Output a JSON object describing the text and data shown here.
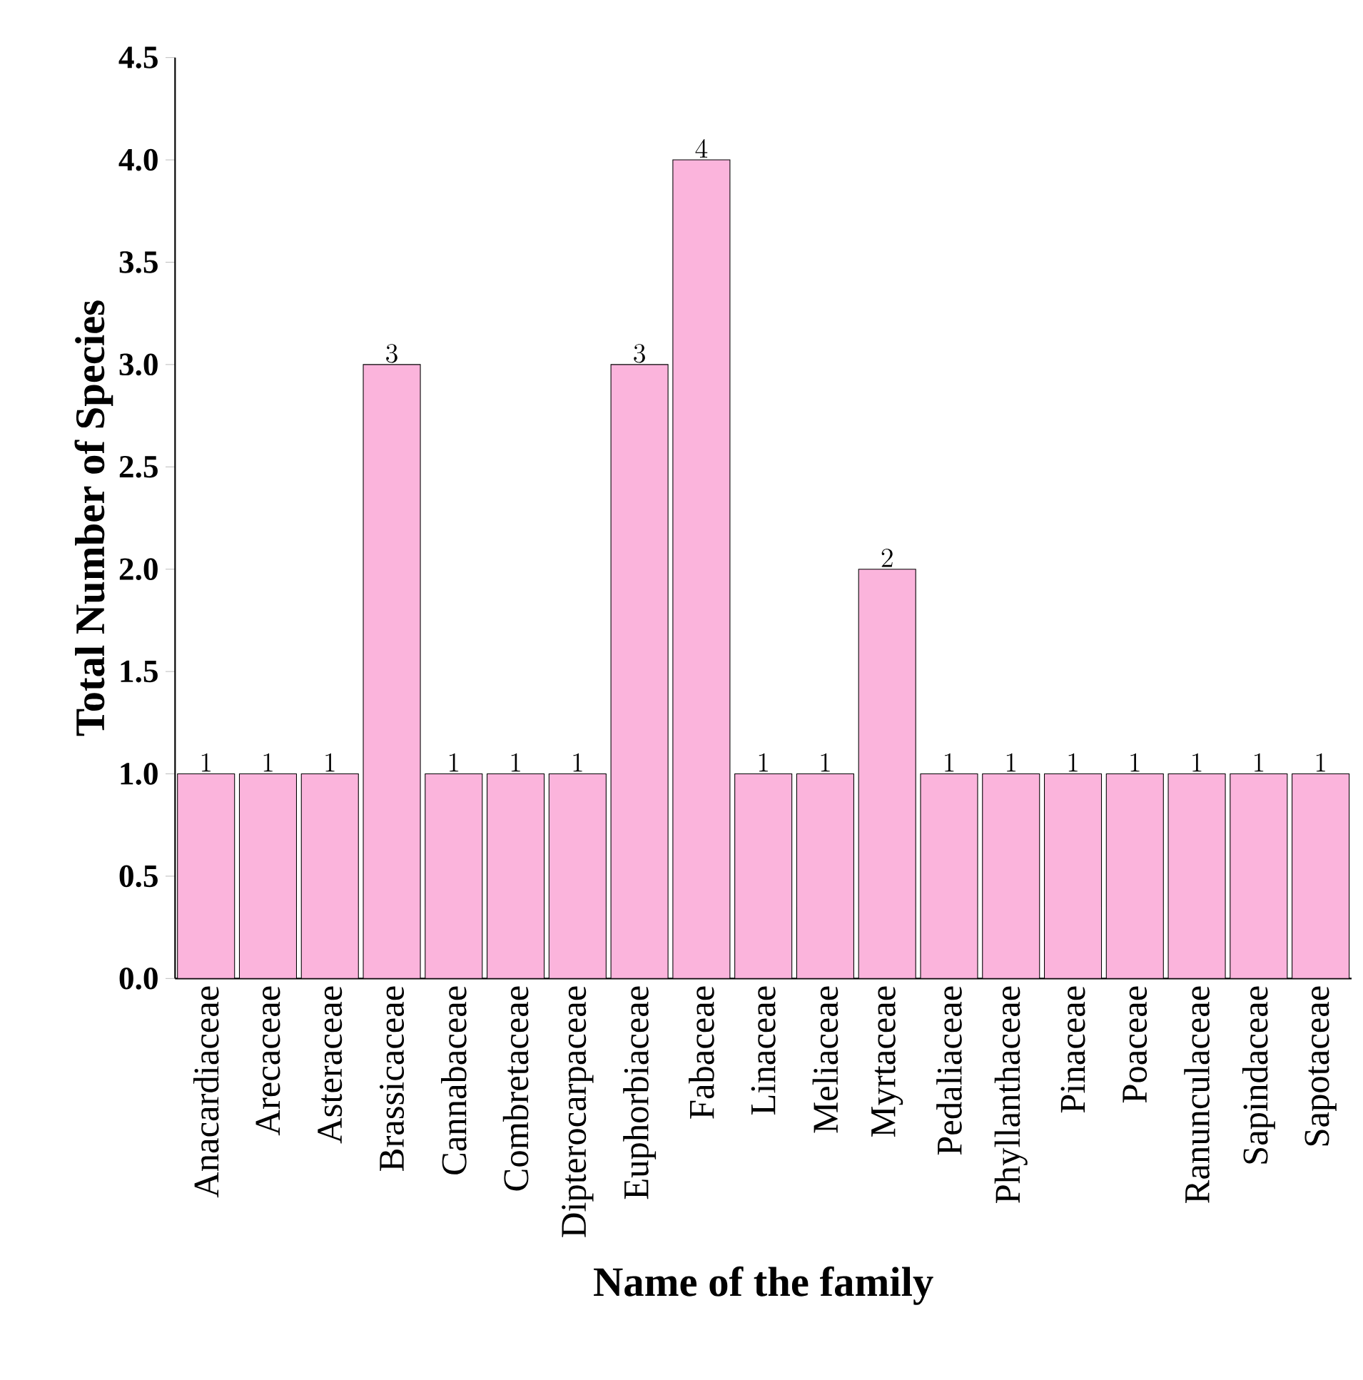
{
  "chart_data": {
    "type": "bar",
    "xlabel": "Name of the family",
    "ylabel": "Total Number of Species",
    "categories": [
      "Anacardiaceae",
      "Arecaceae",
      "Asteraceae",
      "Brassicaceae",
      "Cannabaceae",
      "Combretaceae",
      "Dipterocarpaceae",
      "Euphorbiaceae",
      "Fabaceae",
      "Linaceae",
      "Meliaceae",
      "Myrtaceae",
      "Pedaliaceae",
      "Phyllanthaceae",
      "Pinaceae",
      "Poaceae",
      "Ranunculaceae",
      "Sapindaceae",
      "Sapotaceae"
    ],
    "values": [
      1,
      1,
      1,
      3,
      1,
      1,
      1,
      3,
      4,
      1,
      1,
      2,
      1,
      1,
      1,
      1,
      1,
      1,
      1
    ],
    "color": "#fbb4dc",
    "ylim": [
      0,
      4.5
    ],
    "yticks": [
      {
        "value": 0,
        "label": "0.0"
      },
      {
        "value": 0.5,
        "label": "0.5"
      },
      {
        "value": 1,
        "label": "1.0"
      },
      {
        "value": 1.5,
        "label": "1.5"
      },
      {
        "value": 2,
        "label": "2.0"
      },
      {
        "value": 2.5,
        "label": "2.5"
      },
      {
        "value": 3,
        "label": "3.0"
      },
      {
        "value": 3.5,
        "label": "3.5"
      },
      {
        "value": 4,
        "label": "4.0"
      },
      {
        "value": 4.5,
        "label": "4.5"
      }
    ],
    "data_labels": true,
    "grid": false
  }
}
